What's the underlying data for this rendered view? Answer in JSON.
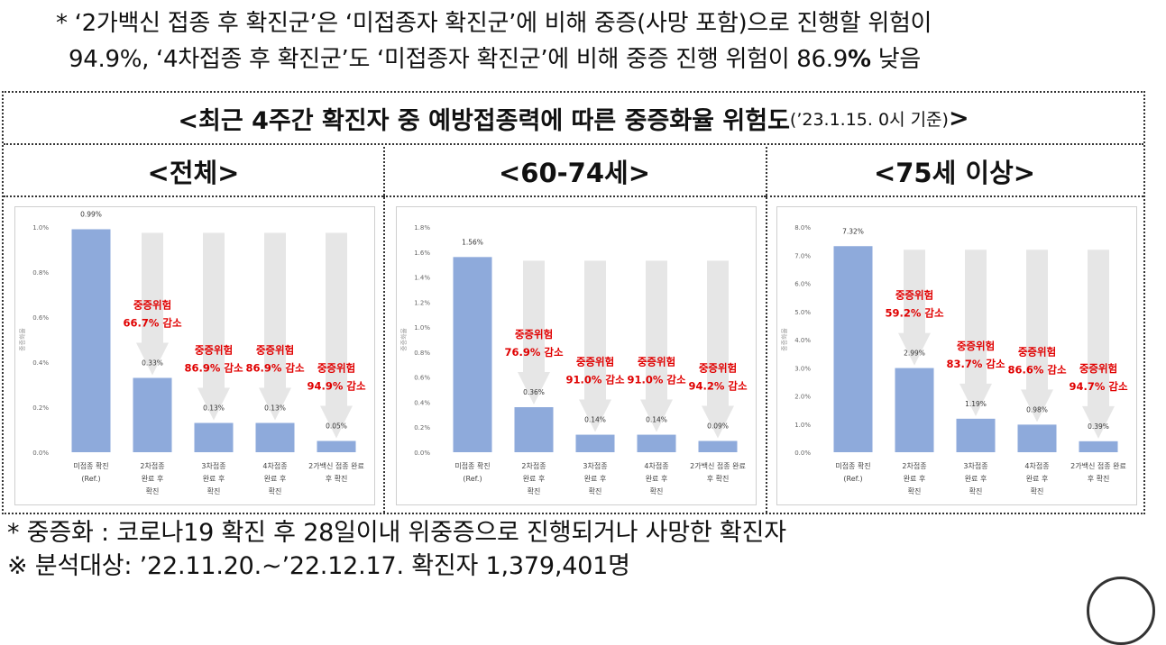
{
  "top_note": {
    "line1": "* ‘2가백신 접종 후 확진군’은 ‘미접종자 확진군’에 비해 중증(사망 포함)으로 진행할 위험이",
    "line2_prefix": "94.9%, ‘4차접종 후 확진군’도 ‘미접종자 확진군’에 비해 중증 진행 위험이 86.9",
    "line2_bold": "%",
    "line2_suffix": " 낮음"
  },
  "figure_title": {
    "main": "<최근 4주간 확진자 중 예방접종력에 따른 중증화율 위험도",
    "sub": "(’23.1.15. 0시 기준)",
    "close": ">"
  },
  "panels": [
    {
      "title": "<전체>"
    },
    {
      "title": "<60-74세>"
    },
    {
      "title": "<75세 이상>"
    }
  ],
  "chart_data": [
    {
      "type": "bar",
      "categories": [
        [
          "미접종 확진",
          "(Ref.)"
        ],
        [
          "2차접종",
          "완료 후",
          "확진"
        ],
        [
          "3차접종",
          "완료 후",
          "확진"
        ],
        [
          "4차접종",
          "완료 후",
          "확진"
        ],
        [
          "2가백신 접종 완료",
          "후 확진"
        ]
      ],
      "values": [
        0.99,
        0.33,
        0.13,
        0.13,
        0.05
      ],
      "value_labels": [
        "0.99%",
        "0.33%",
        "0.13%",
        "0.13%",
        "0.05%"
      ],
      "ylabel": "중증화율",
      "ylim": [
        0,
        1.0
      ],
      "yticks": [
        0,
        0.2,
        0.4,
        0.6,
        0.8,
        1.0
      ],
      "ytick_labels": [
        "0.0%",
        "0.2%",
        "0.4%",
        "0.6%",
        "0.8%",
        "1.0%"
      ],
      "annotations": [
        {
          "label": "중증위험",
          "value": "66.7% 감소"
        },
        {
          "label": "중증위험",
          "value": "86.9% 감소"
        },
        {
          "label": "중증위험",
          "value": "86.9% 감소"
        },
        {
          "label": "중증위험",
          "value": "94.9% 감소"
        }
      ],
      "bar_color": "#8eaadb",
      "arrow_color": "#e6e6e6",
      "annotation_color": "#e00000"
    },
    {
      "type": "bar",
      "categories": [
        [
          "미접종 확진",
          "(Ref.)"
        ],
        [
          "2차접종",
          "완료 후",
          "확진"
        ],
        [
          "3차접종",
          "완료 후",
          "확진"
        ],
        [
          "4차접종",
          "완료 후",
          "확진"
        ],
        [
          "2가백신 접종 완료",
          "후 확진"
        ]
      ],
      "values": [
        1.56,
        0.36,
        0.14,
        0.14,
        0.09
      ],
      "value_labels": [
        "1.56%",
        "0.36%",
        "0.14%",
        "0.14%",
        "0.09%"
      ],
      "ylabel": "중증화율",
      "ylim": [
        0,
        1.8
      ],
      "yticks": [
        0,
        0.2,
        0.4,
        0.6,
        0.8,
        1.0,
        1.2,
        1.4,
        1.6,
        1.8
      ],
      "ytick_labels": [
        "0.0%",
        "0.2%",
        "0.4%",
        "0.6%",
        "0.8%",
        "1.0%",
        "1.2%",
        "1.4%",
        "1.6%",
        "1.8%"
      ],
      "annotations": [
        {
          "label": "중증위험",
          "value": "76.9% 감소"
        },
        {
          "label": "중증위험",
          "value": "91.0% 감소"
        },
        {
          "label": "중증위험",
          "value": "91.0% 감소"
        },
        {
          "label": "중증위험",
          "value": "94.2% 감소"
        }
      ],
      "bar_color": "#8eaadb",
      "arrow_color": "#e6e6e6",
      "annotation_color": "#e00000"
    },
    {
      "type": "bar",
      "categories": [
        [
          "미접종 확진",
          "(Ref.)"
        ],
        [
          "2차접종",
          "완료 후",
          "확진"
        ],
        [
          "3차접종",
          "완료 후",
          "확진"
        ],
        [
          "4차접종",
          "완료 후",
          "확진"
        ],
        [
          "2가백신 접종 완료",
          "후 확진"
        ]
      ],
      "values": [
        7.32,
        2.99,
        1.19,
        0.98,
        0.39
      ],
      "value_labels": [
        "7.32%",
        "2.99%",
        "1.19%",
        "0.98%",
        "0.39%"
      ],
      "ylabel": "중증화율",
      "ylim": [
        0,
        8.0
      ],
      "yticks": [
        0,
        1,
        2,
        3,
        4,
        5,
        6,
        7,
        8
      ],
      "ytick_labels": [
        "0.0%",
        "1.0%",
        "2.0%",
        "3.0%",
        "4.0%",
        "5.0%",
        "6.0%",
        "7.0%",
        "8.0%"
      ],
      "annotations": [
        {
          "label": "중증위험",
          "value": "59.2% 감소"
        },
        {
          "label": "중증위험",
          "value": "83.7% 감소"
        },
        {
          "label": "중증위험",
          "value": "86.6% 감소"
        },
        {
          "label": "중증위험",
          "value": "94.7% 감소"
        }
      ],
      "bar_color": "#8eaadb",
      "arrow_color": "#e6e6e6",
      "annotation_color": "#e00000"
    }
  ],
  "bottom_notes": {
    "line1": "* 중증화 : 코로나19 확진 후 28일이내 위중증으로 진행되거나 사망한 확진자",
    "line2": "※ 분석대상: ’22.11.20.~’22.12.17. 확진자 1,379,401명"
  }
}
